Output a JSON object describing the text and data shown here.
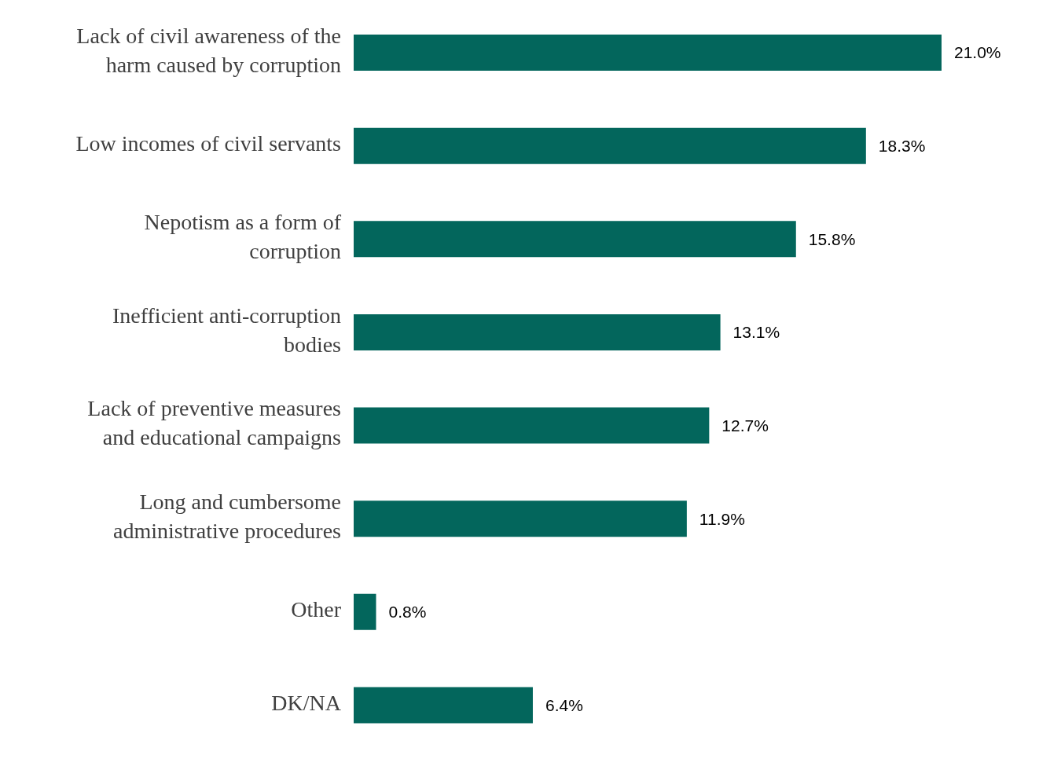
{
  "chart_data": {
    "type": "bar",
    "orientation": "horizontal",
    "categories": [
      "Lack of civil awareness of the harm caused by corruption",
      "Low incomes of civil servants",
      "Nepotism as a form of corruption",
      "Inefficient anti-corruption bodies",
      "Lack of preventive measures and educational campaigns",
      "Long and cumbersome administrative procedures",
      "Other",
      "DK/NA"
    ],
    "values": [
      21.0,
      18.3,
      15.8,
      13.1,
      12.7,
      11.9,
      0.8,
      6.4
    ],
    "value_labels": [
      "21.0%",
      "18.3%",
      "15.8%",
      "13.1%",
      "12.7%",
      "11.9%",
      "0.8%",
      "6.4%"
    ],
    "color": "#03665c",
    "tick_labels": "y"
  }
}
